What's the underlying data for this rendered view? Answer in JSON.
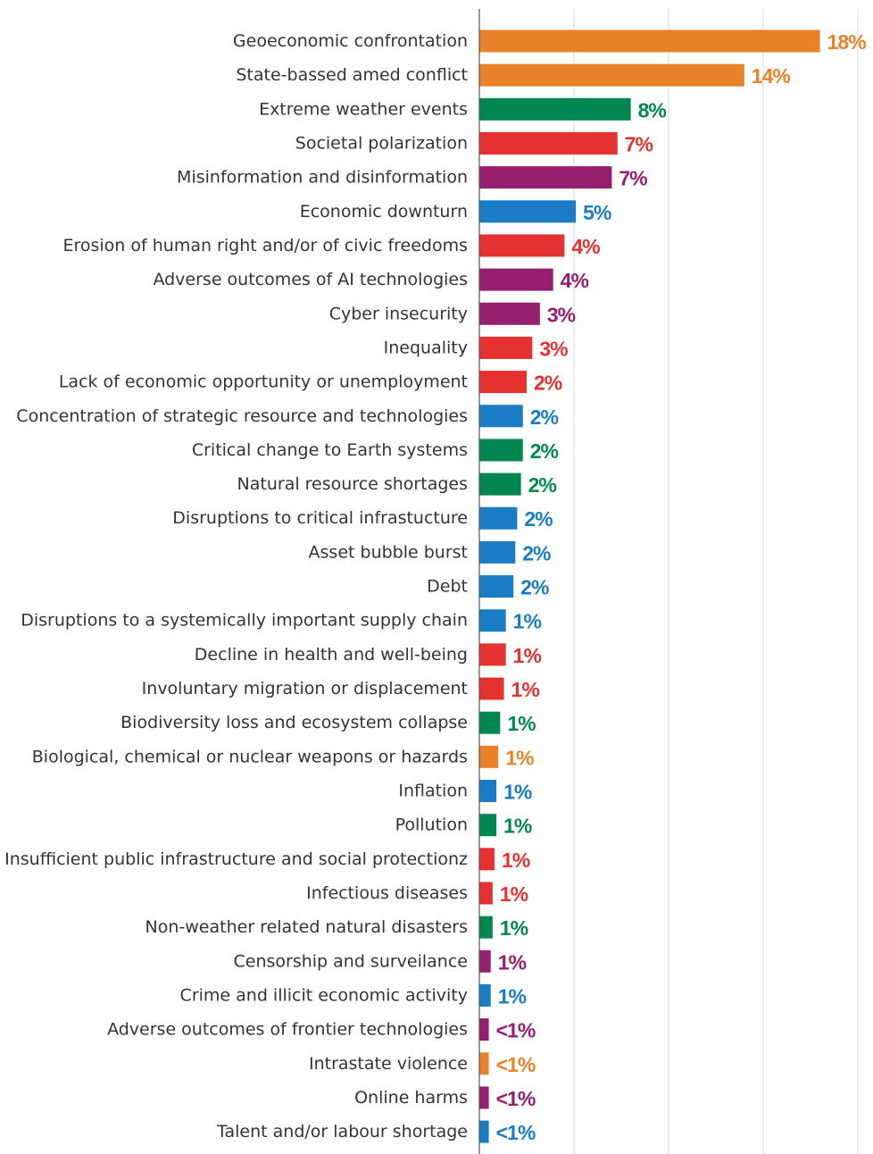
{
  "palette": {
    "geopolitical": "#e8822a",
    "environmental": "#00864f",
    "societal": "#e63131",
    "technological": "#951e6f",
    "economic": "#1a7cc5"
  },
  "chart_data": {
    "type": "bar",
    "orientation": "horizontal",
    "title": "",
    "xlabel": "",
    "ylabel": "",
    "xlim": [
      0,
      20
    ],
    "grid": true,
    "legend": "none",
    "categories": [
      "Geoeconomic confrontation",
      "State-bassed amed conflict",
      "Extreme weather events",
      "Societal polarization",
      "Misinformation and disinformation",
      "Economic downturn",
      "Erosion of human right and/or of civic freedoms",
      "Adverse outcomes of AI technologies",
      "Cyber insecurity",
      "Inequality",
      "Lack of economic opportunity or unemployment",
      "Concentration of strategic resource and technologies",
      "Critical change to Earth systems",
      "Natural resource shortages",
      "Disruptions to critical infrastucture",
      "Asset bubble burst",
      "Debt",
      "Disruptions to a systemically important supply chain",
      "Decline in health and well-being",
      "Involuntary migration or displacement",
      "Biodiversity loss and ecosystem collapse",
      "Biological, chemical or nuclear weapons or hazards",
      "Inflation",
      "Pollution",
      "Insufficient public infrastructure and social protectionz",
      "Infectious diseases",
      "Non-weather related natural disasters",
      "Censorship and surveilance",
      "Crime and illicit economic activity",
      "Adverse outcomes of frontier technologies",
      "Intrastate violence",
      "Online harms",
      "Talent and/or labour shortage"
    ],
    "values": [
      18,
      14,
      8,
      7.3,
      7,
      5.1,
      4.5,
      3.9,
      3.2,
      2.8,
      2.5,
      2.3,
      2.3,
      2.2,
      2.0,
      1.9,
      1.8,
      1.4,
      1.4,
      1.3,
      1.1,
      1.0,
      0.9,
      0.9,
      0.8,
      0.7,
      0.7,
      0.6,
      0.6,
      0.5,
      0.5,
      0.5,
      0.5
    ],
    "labels": [
      "18%",
      "14%",
      "8%",
      "7%",
      "7%",
      "5%",
      "4%",
      "4%",
      "3%",
      "3%",
      "2%",
      "2%",
      "2%",
      "2%",
      "2%",
      "2%",
      "2%",
      "1%",
      "1%",
      "1%",
      "1%",
      "1%",
      "1%",
      "1%",
      "1%",
      "1%",
      "1%",
      "1%",
      "1%",
      "<1%",
      "<1%",
      "<1%",
      "<1%"
    ],
    "colors": [
      "#e8822a",
      "#e8822a",
      "#00864f",
      "#e63131",
      "#951e6f",
      "#1a7cc5",
      "#e63131",
      "#951e6f",
      "#951e6f",
      "#e63131",
      "#e63131",
      "#1a7cc5",
      "#00864f",
      "#00864f",
      "#1a7cc5",
      "#1a7cc5",
      "#1a7cc5",
      "#1a7cc5",
      "#e63131",
      "#e63131",
      "#00864f",
      "#e8822a",
      "#1a7cc5",
      "#00864f",
      "#e63131",
      "#e63131",
      "#00864f",
      "#951e6f",
      "#1a7cc5",
      "#951e6f",
      "#e8822a",
      "#951e6f",
      "#1a7cc5"
    ]
  }
}
